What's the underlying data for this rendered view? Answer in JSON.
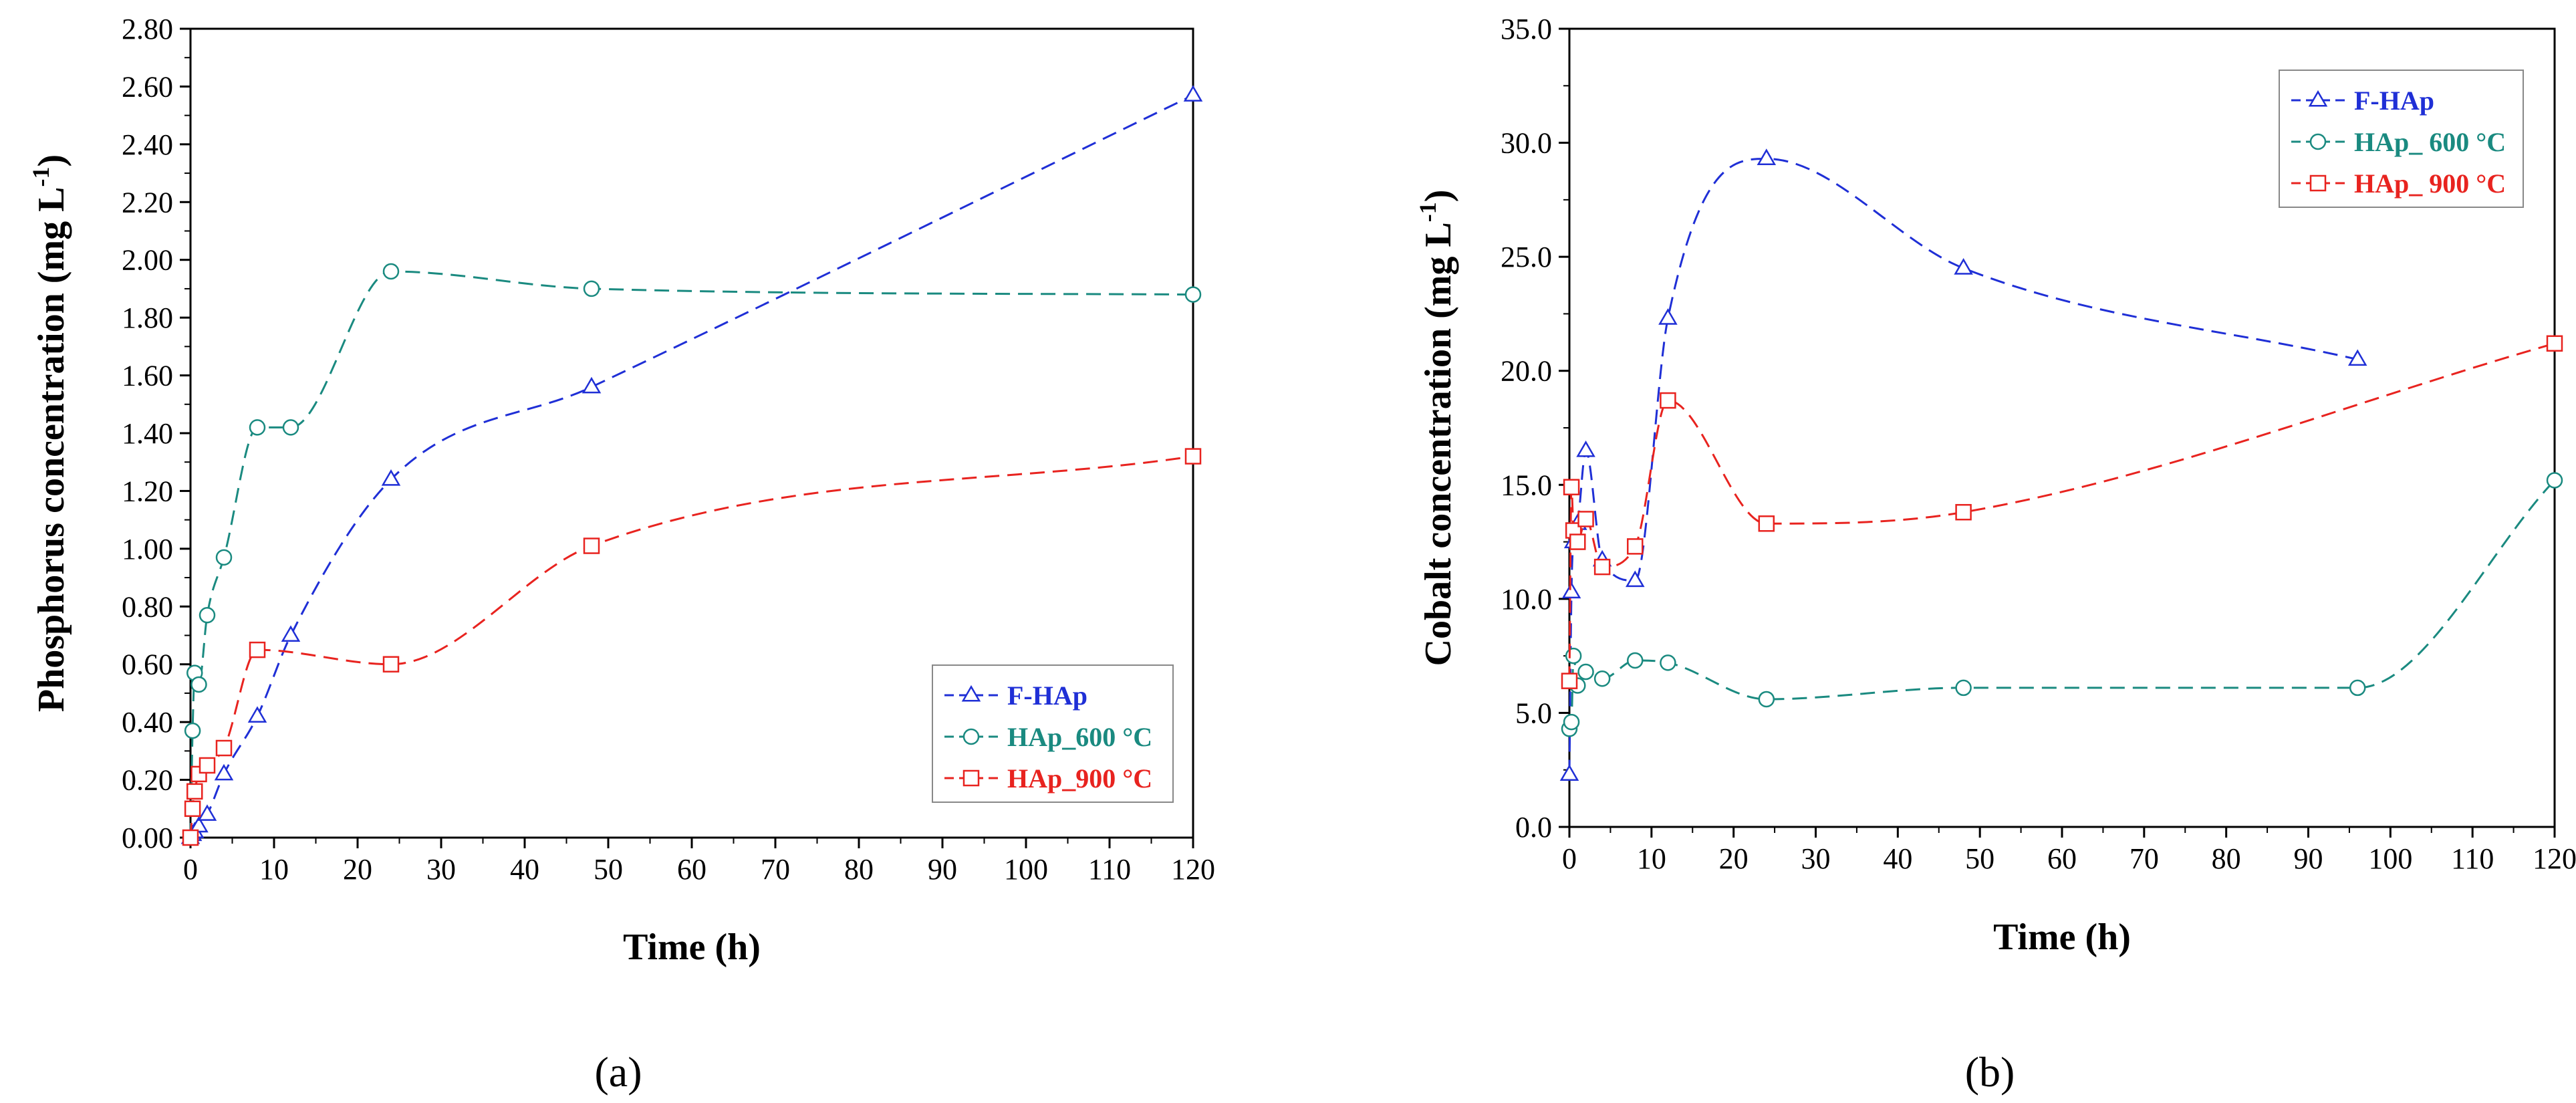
{
  "chart_data": [
    {
      "type": "line",
      "panel_label": "(a)",
      "xlabel": "Time (h)",
      "ylabel": "Phosphorus concentration (mg L",
      "ylabel_unit_sup": "-1",
      "ylabel_close": ")",
      "xlim": [
        0,
        120
      ],
      "ylim": [
        0,
        2.8
      ],
      "xticks": [
        0,
        10,
        20,
        30,
        40,
        50,
        60,
        70,
        80,
        90,
        100,
        110,
        120
      ],
      "yticks": [
        "0.00",
        "0.20",
        "0.40",
        "0.60",
        "0.80",
        "1.00",
        "1.20",
        "1.40",
        "1.60",
        "1.80",
        "2.00",
        "2.20",
        "2.40",
        "2.60",
        "2.80"
      ],
      "legend_position": "bottom-right",
      "series": [
        {
          "name": "F-HAp",
          "color": "#1f2fd6",
          "marker": "triangle",
          "x": [
            0,
            0.25,
            0.5,
            1,
            2,
            4,
            8,
            12,
            24,
            48,
            120
          ],
          "y": [
            0.0,
            0.01,
            0.02,
            0.04,
            0.08,
            0.22,
            0.42,
            0.7,
            1.24,
            1.56,
            2.57
          ]
        },
        {
          "name": "HAp_600 °C",
          "color": "#1a8a80",
          "marker": "circle",
          "x": [
            0,
            0.25,
            0.5,
            1,
            2,
            4,
            8,
            12,
            24,
            48,
            120
          ],
          "y": [
            0.0,
            0.37,
            0.57,
            0.53,
            0.77,
            0.97,
            1.42,
            1.42,
            1.96,
            1.9,
            1.88
          ]
        },
        {
          "name": "HAp_900 °C",
          "color": "#e8231f",
          "marker": "square",
          "x": [
            0,
            0.25,
            0.5,
            1,
            2,
            4,
            8,
            24,
            48,
            120
          ],
          "y": [
            0.0,
            0.1,
            0.16,
            0.22,
            0.25,
            0.31,
            0.65,
            0.6,
            1.01,
            1.32
          ]
        }
      ]
    },
    {
      "type": "line",
      "panel_label": "(b)",
      "xlabel": "Time (h)",
      "ylabel": "Cobalt concentration (mg L",
      "ylabel_unit_sup": "-1",
      "ylabel_close": ")",
      "xlim": [
        0,
        120
      ],
      "ylim": [
        0,
        35
      ],
      "xticks": [
        0,
        10,
        20,
        30,
        40,
        50,
        60,
        70,
        80,
        90,
        100,
        110,
        120
      ],
      "yticks": [
        "0.0",
        "5.0",
        "10.0",
        "15.0",
        "20.0",
        "25.0",
        "30.0",
        "35.0"
      ],
      "legend_position": "top-right",
      "series": [
        {
          "name": "F-HAp",
          "color": "#1f2fd6",
          "marker": "triangle",
          "x": [
            0,
            0.25,
            0.5,
            1,
            2,
            4,
            8,
            12,
            24,
            48,
            96
          ],
          "y": [
            2.3,
            10.3,
            12.5,
            13.3,
            16.5,
            11.7,
            10.8,
            22.3,
            29.3,
            24.5,
            20.5
          ]
        },
        {
          "name": "HAp_ 600 °C",
          "color": "#1a8a80",
          "marker": "circle",
          "x": [
            0,
            0.25,
            0.5,
            1,
            2,
            4,
            8,
            12,
            24,
            48,
            96,
            120
          ],
          "y": [
            4.3,
            4.6,
            7.5,
            6.2,
            6.8,
            6.5,
            7.3,
            7.2,
            5.6,
            6.1,
            6.1,
            15.2
          ]
        },
        {
          "name": "HAp_ 900 °C",
          "color": "#e8231f",
          "marker": "square",
          "x": [
            0,
            0.25,
            0.5,
            1,
            2,
            4,
            8,
            12,
            24,
            48,
            120
          ],
          "y": [
            6.4,
            14.9,
            13.0,
            12.5,
            13.5,
            11.4,
            12.3,
            18.7,
            13.3,
            13.8,
            21.2
          ]
        }
      ]
    }
  ]
}
